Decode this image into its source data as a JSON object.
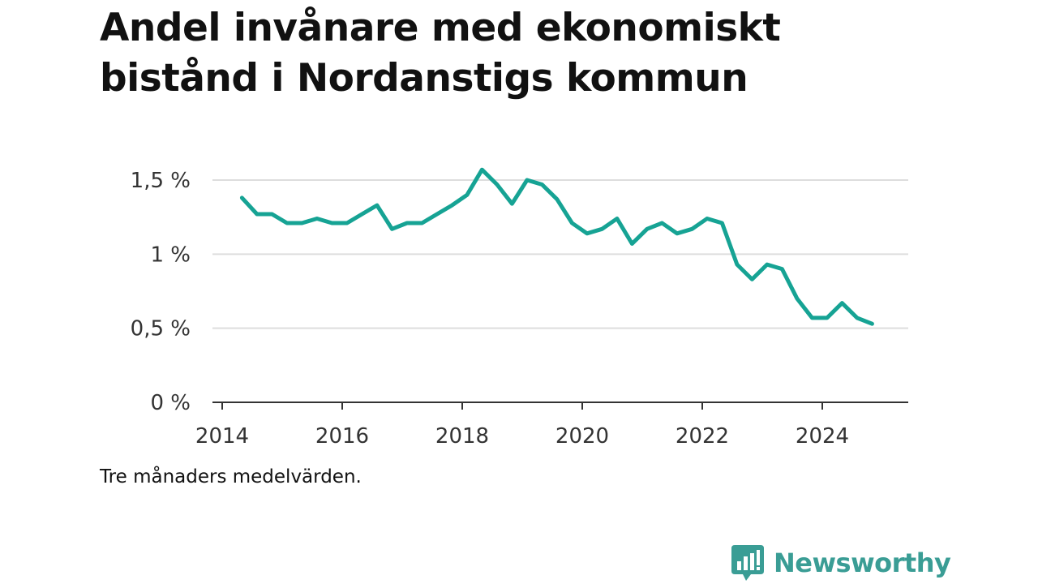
{
  "title_line1": "Andel invånare med ekonomiskt",
  "title_line2": "bistånd i Nordanstigs kommun",
  "note": "Tre månaders medelvärden.",
  "brand": {
    "name": "Newsworthy",
    "color": "#3a9d95",
    "icon": "newsworthy-bar-chart-icon"
  },
  "chart_data": {
    "type": "line",
    "title": "Andel invånare med ekonomiskt bistånd i Nordanstigs kommun",
    "xlabel": "",
    "ylabel": "",
    "ylim": [
      0,
      1.5
    ],
    "xlim": [
      2014,
      2025.4
    ],
    "grid": true,
    "line_color": "#16a394",
    "y_ticks": [
      {
        "value": 0,
        "label": "0 %"
      },
      {
        "value": 0.5,
        "label": "0,5 %"
      },
      {
        "value": 1.0,
        "label": "1 %"
      },
      {
        "value": 1.5,
        "label": "1,5 %"
      }
    ],
    "x_ticks": [
      {
        "value": 2014,
        "label": "2014"
      },
      {
        "value": 2016,
        "label": "2016"
      },
      {
        "value": 2018,
        "label": "2018"
      },
      {
        "value": 2020,
        "label": "2020"
      },
      {
        "value": 2022,
        "label": "2022"
      },
      {
        "value": 2024,
        "label": "2024"
      }
    ],
    "series": [
      {
        "x": [
          2014.33,
          2014.58,
          2014.83,
          2015.08,
          2015.33,
          2015.58,
          2015.83,
          2016.08,
          2016.33,
          2016.58,
          2016.83,
          2017.08,
          2017.33,
          2017.58,
          2017.83,
          2018.08,
          2018.33,
          2018.58,
          2018.83,
          2019.08,
          2019.33,
          2019.58,
          2019.83,
          2020.08,
          2020.33,
          2020.58,
          2020.83,
          2021.08,
          2021.33,
          2021.58,
          2021.83,
          2022.08,
          2022.33,
          2022.58,
          2022.83,
          2023.08,
          2023.33,
          2023.58,
          2023.83,
          2024.08,
          2024.33,
          2024.58,
          2024.83
        ],
        "values": [
          1.38,
          1.27,
          1.27,
          1.21,
          1.21,
          1.24,
          1.21,
          1.21,
          1.27,
          1.33,
          1.17,
          1.21,
          1.21,
          1.27,
          1.33,
          1.4,
          1.57,
          1.47,
          1.34,
          1.5,
          1.47,
          1.37,
          1.21,
          1.14,
          1.17,
          1.24,
          1.07,
          1.17,
          1.21,
          1.14,
          1.17,
          1.24,
          1.21,
          0.93,
          0.83,
          0.93,
          0.9,
          0.7,
          0.57,
          0.57,
          0.67,
          0.57,
          0.53
        ]
      }
    ]
  }
}
